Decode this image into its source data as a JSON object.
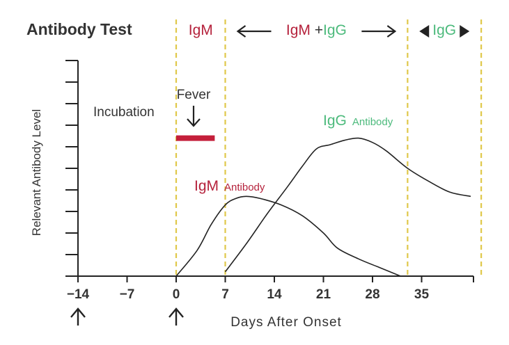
{
  "chart_data": {
    "type": "line",
    "title": "Antibody Test",
    "xlabel": "Days After Onset",
    "ylabel": "Relevant Antibody Level",
    "xlim": [
      -14,
      42
    ],
    "ylim": [
      0,
      10
    ],
    "x_ticks": [
      -14,
      -7,
      0,
      7,
      14,
      21,
      28,
      35
    ],
    "x_tick_labels": [
      "−14",
      "−7",
      "0",
      "7",
      "14",
      "21",
      "28",
      "35"
    ],
    "y_tick_count": 10,
    "grid": false,
    "legend": "none",
    "phase_boundaries": [
      0,
      7,
      33,
      43.5
    ],
    "phases": [
      {
        "parts": [
          {
            "text": "IgM",
            "color": "#b5223c"
          }
        ]
      },
      {
        "parts": [
          {
            "text": "IgM",
            "color": "#b5223c"
          },
          {
            "text": " +",
            "color": "#333333"
          },
          {
            "text": "IgG",
            "color": "#4cba7c"
          }
        ],
        "arrows": "outward"
      },
      {
        "parts": [
          {
            "text": "IgG",
            "color": "#4cba7c"
          }
        ],
        "arrows": "inward"
      }
    ],
    "fever": {
      "label": "Fever",
      "x_start": 0,
      "x_end": 5.5,
      "level": 6.4,
      "color": "#c41f3a"
    },
    "incubation_label": "Incubation",
    "series": [
      {
        "name": "IgM",
        "suffix": "Antibody",
        "color": "#b5223c",
        "x": [
          0,
          3,
          5,
          7,
          8.5,
          10,
          12,
          15,
          18,
          21,
          23,
          26,
          29,
          32
        ],
        "y": [
          0,
          1.2,
          2.4,
          3.3,
          3.6,
          3.7,
          3.6,
          3.3,
          2.8,
          2.0,
          1.3,
          0.8,
          0.4,
          0
        ]
      },
      {
        "name": "IgG",
        "suffix": "Antibody",
        "color": "#4cba7c",
        "x": [
          7,
          10,
          13,
          16,
          18,
          20,
          22,
          24,
          26,
          28,
          30,
          33,
          36,
          39,
          42
        ],
        "y": [
          0.2,
          1.5,
          2.9,
          4.2,
          5.1,
          5.9,
          6.1,
          6.3,
          6.4,
          6.2,
          5.8,
          5.0,
          4.4,
          3.9,
          3.7
        ]
      }
    ],
    "marked_days": [
      -14,
      0
    ],
    "colors": {
      "axis": "#222222",
      "text": "#333333",
      "dashed": "#e0c84a",
      "igm": "#b5223c",
      "igg": "#4cba7c",
      "fever": "#c41f3a"
    }
  }
}
